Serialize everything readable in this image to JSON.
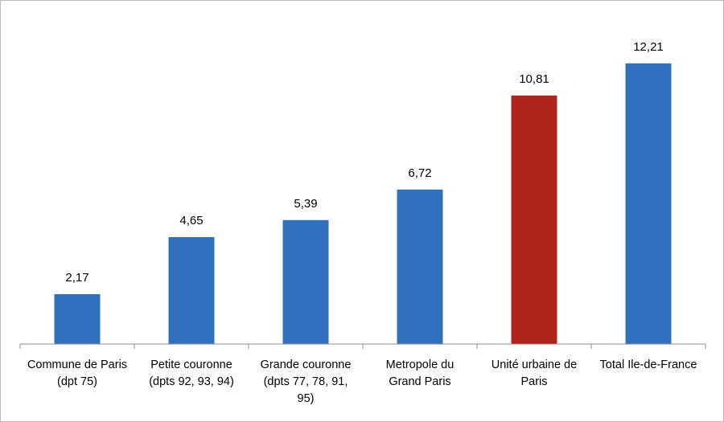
{
  "chart_data": {
    "type": "bar",
    "categories": [
      [
        "Commune de Paris",
        "(dpt 75)"
      ],
      [
        "Petite couronne",
        "(dpts 92, 93, 94)"
      ],
      [
        "Grande couronne",
        "(dpts 77, 78, 91,",
        "95)"
      ],
      [
        "Metropole du",
        "Grand Paris"
      ],
      [
        "Unité urbaine de",
        "Paris"
      ],
      [
        "Total Ile-de-France"
      ]
    ],
    "values": [
      2.17,
      4.65,
      5.39,
      6.72,
      10.81,
      12.21
    ],
    "value_labels": [
      "2,17",
      "4,65",
      "5,39",
      "6,72",
      "10,81",
      "12,21"
    ],
    "bar_colors": [
      "#2f70bf",
      "#2f70bf",
      "#2f70bf",
      "#2f70bf",
      "#b0231a",
      "#2f70bf"
    ],
    "title": "",
    "xlabel": "",
    "ylabel": "",
    "ylim": [
      0,
      14
    ],
    "grid": false,
    "legend": "none"
  }
}
